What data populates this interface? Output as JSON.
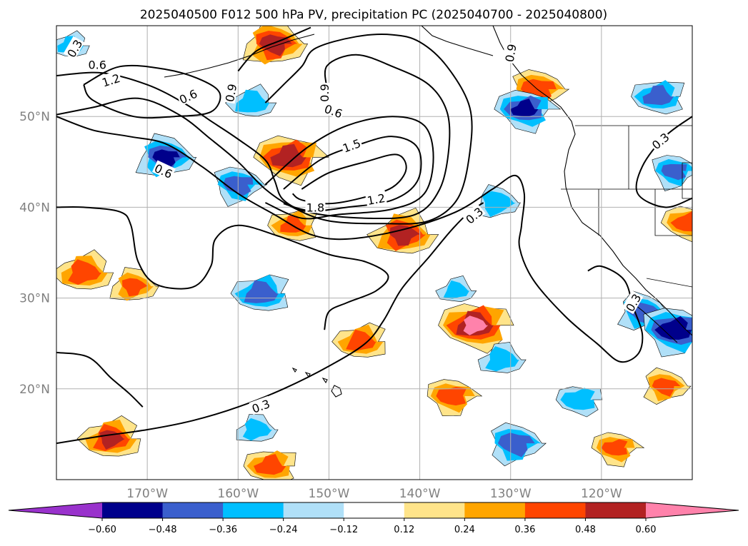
{
  "chart_data": {
    "type": "contour_map",
    "title": "2025040500 F012 500 hPa PV, precipitation PC (2025040700 - 2025040800)",
    "projection": "PlateCarree",
    "lon_range": [
      -180,
      -110
    ],
    "lat_range": [
      10,
      60
    ],
    "lat_ticks": [
      20,
      30,
      40,
      50
    ],
    "lat_labels": [
      "20°N",
      "30°N",
      "40°N",
      "50°N"
    ],
    "lon_ticks": [
      -170,
      -160,
      -150,
      -140,
      -130,
      -120
    ],
    "lon_labels": [
      "170°W",
      "160°W",
      "150°W",
      "140°W",
      "130°W",
      "120°W"
    ],
    "grid": true,
    "colorbar": {
      "orientation": "horizontal",
      "extend": "both",
      "levels": [
        -0.6,
        -0.48,
        -0.36,
        -0.24,
        -0.12,
        0.12,
        0.24,
        0.36,
        0.48,
        0.6
      ],
      "tick_labels": [
        "−0.60",
        "−0.48",
        "−0.36",
        "−0.24",
        "−0.12",
        "0.12",
        "0.24",
        "0.36",
        "0.48",
        "0.60"
      ],
      "colors": [
        "#9932cc",
        "#00008b",
        "#3a5fcd",
        "#00bfff",
        "#b0e0f8",
        "#ffffff",
        "#ffe48a",
        "#ffa500",
        "#ff4500",
        "#b22222",
        "#ff82ab"
      ]
    },
    "pv_contour_labels": [
      "0.3",
      "0.6",
      "0.9",
      "1.2",
      "1.5",
      "1.8"
    ],
    "precip_blobs": [
      {
        "lon": -178.5,
        "lat": 57.8,
        "v": -0.3
      },
      {
        "lon": -156,
        "lat": 58.0,
        "v": 0.5
      },
      {
        "lon": -127,
        "lat": 53.0,
        "v": 0.38
      },
      {
        "lon": -128.5,
        "lat": 50.8,
        "v": -0.5
      },
      {
        "lon": -113.8,
        "lat": 52.2,
        "v": -0.38
      },
      {
        "lon": -158.5,
        "lat": 51.5,
        "v": -0.3
      },
      {
        "lon": -168,
        "lat": 45.5,
        "v": -0.5
      },
      {
        "lon": -160,
        "lat": 42.5,
        "v": -0.38
      },
      {
        "lon": -154.5,
        "lat": 45.5,
        "v": 0.5
      },
      {
        "lon": -154,
        "lat": 38.0,
        "v": 0.38
      },
      {
        "lon": -141.8,
        "lat": 37.0,
        "v": 0.48
      },
      {
        "lon": -131.5,
        "lat": 40.5,
        "v": -0.3
      },
      {
        "lon": -112,
        "lat": 44.0,
        "v": -0.38
      },
      {
        "lon": -110.5,
        "lat": 38.3,
        "v": 0.38
      },
      {
        "lon": -157.5,
        "lat": 30.5,
        "v": -0.38
      },
      {
        "lon": -136,
        "lat": 30.8,
        "v": -0.3
      },
      {
        "lon": -115.5,
        "lat": 28.5,
        "v": -0.38
      },
      {
        "lon": -112,
        "lat": 26.5,
        "v": -0.5
      },
      {
        "lon": -134,
        "lat": 27.0,
        "v": 0.6
      },
      {
        "lon": -146.5,
        "lat": 25.2,
        "v": 0.38
      },
      {
        "lon": -131,
        "lat": 23.2,
        "v": -0.3
      },
      {
        "lon": -113,
        "lat": 20.3,
        "v": 0.38
      },
      {
        "lon": -136.5,
        "lat": 19.2,
        "v": 0.38
      },
      {
        "lon": -122.5,
        "lat": 18.8,
        "v": -0.3
      },
      {
        "lon": -174,
        "lat": 14.5,
        "v": 0.5
      },
      {
        "lon": -158,
        "lat": 15.5,
        "v": -0.3
      },
      {
        "lon": -129.5,
        "lat": 14.0,
        "v": -0.38
      },
      {
        "lon": -118.5,
        "lat": 13.5,
        "v": 0.38
      },
      {
        "lon": -156.5,
        "lat": 11.5,
        "v": 0.38
      },
      {
        "lon": -177,
        "lat": 32.8,
        "v": 0.36
      },
      {
        "lon": -171.5,
        "lat": 31.3,
        "v": 0.36
      }
    ],
    "pv_contours": [
      {
        "level": "1.8",
        "pts": [
          [
            -153,
            42
          ],
          [
            -150,
            43.8
          ],
          [
            -146,
            45
          ],
          [
            -142.5,
            45.8
          ],
          [
            -141.5,
            44.2
          ],
          [
            -143,
            42.2
          ],
          [
            -146.5,
            41
          ],
          [
            -150,
            40.4
          ],
          [
            -153,
            40.8
          ],
          [
            -154,
            41.5
          ]
        ]
      },
      {
        "level": "1.5",
        "pts": [
          [
            -155,
            42
          ],
          [
            -151,
            45.2
          ],
          [
            -147,
            46.8
          ],
          [
            -143,
            47.8
          ],
          [
            -140.2,
            46.5
          ],
          [
            -140.2,
            43
          ],
          [
            -143,
            40.8
          ],
          [
            -148,
            40
          ],
          [
            -152,
            39.6
          ],
          [
            -155,
            40.4
          ]
        ]
      },
      {
        "level": "1.2",
        "pts": [
          [
            -157,
            42.5
          ],
          [
            -152.5,
            46.5
          ],
          [
            -148,
            49
          ],
          [
            -143,
            50
          ],
          [
            -139.5,
            49
          ],
          [
            -138.5,
            45.5
          ],
          [
            -139.5,
            41.5
          ],
          [
            -143,
            39.8
          ],
          [
            -149,
            39.2
          ],
          [
            -153,
            38.8
          ],
          [
            -157,
            40.5
          ]
        ]
      },
      {
        "level": "0.9",
        "pts": [
          [
            -180,
            54.5
          ],
          [
            -175,
            54.8
          ],
          [
            -170,
            53.5
          ],
          [
            -166,
            51.5
          ],
          [
            -163,
            49.5
          ],
          [
            -160,
            47.5
          ],
          [
            -157,
            45.2
          ],
          [
            -156,
            43
          ],
          [
            -155,
            40.8
          ],
          [
            -152,
            39.4
          ],
          [
            -146,
            38.8
          ],
          [
            -140.5,
            39.2
          ],
          [
            -137.8,
            42
          ],
          [
            -136.8,
            46.5
          ],
          [
            -137,
            50.5
          ],
          [
            -139,
            53.5
          ],
          [
            -143,
            55.5
          ],
          [
            -147,
            56.8
          ],
          [
            -150.2,
            55.6
          ],
          [
            -150.2,
            53
          ]
        ]
      },
      {
        "level": "0.6",
        "pts": [
          [
            -180,
            50.2
          ],
          [
            -176,
            51
          ],
          [
            -171,
            52
          ],
          [
            -166.5,
            50.2
          ],
          [
            -163,
            47.5
          ],
          [
            -160,
            45
          ],
          [
            -157,
            42
          ],
          [
            -154,
            40
          ],
          [
            -150,
            38.5
          ],
          [
            -144,
            38.2
          ],
          [
            -139,
            38.5
          ],
          [
            -135.8,
            41
          ],
          [
            -134.5,
            46
          ],
          [
            -134.5,
            51
          ],
          [
            -137,
            55.5
          ],
          [
            -140,
            58.2
          ],
          [
            -143,
            59
          ],
          [
            -147,
            58.8
          ],
          [
            -151.5,
            57.5
          ],
          [
            -153,
            55.5
          ],
          [
            -155,
            53.5
          ],
          [
            -157,
            51.5
          ]
        ]
      },
      {
        "level": "0.6",
        "pts": [
          [
            -177,
            53.5
          ],
          [
            -173,
            55.5
          ],
          [
            -168,
            55.2
          ],
          [
            -164,
            54
          ],
          [
            -162,
            52.5
          ],
          [
            -163,
            50.5
          ],
          [
            -167,
            50
          ],
          [
            -171.5,
            50
          ],
          [
            -176,
            51.8
          ],
          [
            -177,
            53.5
          ]
        ]
      },
      {
        "level": "0.3",
        "pts": [
          [
            -180,
            50
          ],
          [
            -176,
            48.5
          ],
          [
            -172,
            47.8
          ],
          [
            -168,
            47
          ],
          [
            -164,
            44.5
          ],
          [
            -160,
            41.5
          ],
          [
            -156,
            39.2
          ],
          [
            -152,
            37
          ],
          [
            -148,
            36.5
          ],
          [
            -142,
            37.5
          ],
          [
            -136,
            39.5
          ],
          [
            -132,
            42
          ],
          [
            -129.5,
            43.5
          ],
          [
            -128.5,
            41.5
          ],
          [
            -128.8,
            38
          ],
          [
            -129,
            35.5
          ],
          [
            -127.5,
            32
          ],
          [
            -124,
            28
          ],
          [
            -120.5,
            25
          ],
          [
            -118,
            23
          ],
          [
            -116,
            23.8
          ],
          [
            -115.5,
            26
          ],
          [
            -116.5,
            29
          ],
          [
            -117.5,
            32
          ],
          [
            -120,
            33.5
          ],
          [
            -121.5,
            33
          ]
        ]
      },
      {
        "level": "0.3",
        "pts": [
          [
            -180,
            40
          ],
          [
            -177,
            40
          ],
          [
            -173,
            39.5
          ],
          [
            -171.8,
            38
          ],
          [
            -171,
            34
          ],
          [
            -169,
            31.5
          ],
          [
            -165,
            31.2
          ],
          [
            -163,
            33.5
          ],
          [
            -162.5,
            36.5
          ],
          [
            -160,
            38
          ],
          [
            -155.5,
            36.8
          ],
          [
            -150,
            34.8
          ],
          [
            -146,
            34
          ],
          [
            -143.5,
            32.5
          ],
          [
            -144.8,
            30.8
          ],
          [
            -148,
            29.5
          ],
          [
            -150,
            28.5
          ],
          [
            -150.5,
            26.5
          ]
        ]
      },
      {
        "level": "0.3",
        "pts": [
          [
            -180,
            24
          ],
          [
            -176.5,
            23.5
          ],
          [
            -174,
            21.2
          ],
          [
            -172,
            19.5
          ],
          [
            -170.5,
            18
          ]
        ]
      },
      {
        "level": "0.3",
        "pts": [
          [
            -180,
            14
          ],
          [
            -175,
            14.8
          ],
          [
            -170,
            15.5
          ],
          [
            -165,
            16.5
          ],
          [
            -160,
            18
          ],
          [
            -155,
            20
          ],
          [
            -150,
            22.5
          ],
          [
            -146,
            25
          ],
          [
            -144,
            27.5
          ],
          [
            -142,
            31
          ],
          [
            -139,
            34.5
          ],
          [
            -136.5,
            37.5
          ],
          [
            -134.5,
            39.5
          ],
          [
            -133,
            40.5
          ]
        ]
      },
      {
        "level": "0.9",
        "pts": [
          [
            -160,
            55
          ],
          [
            -158,
            57.2
          ],
          [
            -155,
            58.5
          ],
          [
            -152,
            59.8
          ]
        ]
      },
      {
        "level": "0.3",
        "pts": [
          [
            -110,
            50
          ],
          [
            -113,
            47.8
          ],
          [
            -115.5,
            44.5
          ],
          [
            -116,
            41.5
          ],
          [
            -113,
            40
          ],
          [
            -110,
            41
          ]
        ]
      }
    ],
    "contour_label_positions": [
      {
        "text": "0.3",
        "lon": -178,
        "lat": 57.5,
        "rot": -60
      },
      {
        "text": "0.6",
        "lon": -175.5,
        "lat": 55.7,
        "rot": 0
      },
      {
        "text": "1.2",
        "lon": -174,
        "lat": 54.0,
        "rot": -18
      },
      {
        "text": "0.6",
        "lon": -165.5,
        "lat": 52.2,
        "rot": -25
      },
      {
        "text": "0.9",
        "lon": -160.8,
        "lat": 52.6,
        "rot": -80
      },
      {
        "text": "0.6",
        "lon": -168.2,
        "lat": 44.0,
        "rot": 25
      },
      {
        "text": "0.9",
        "lon": -150.5,
        "lat": 52.6,
        "rot": -90
      },
      {
        "text": "0.6",
        "lon": -149.5,
        "lat": 50.6,
        "rot": 20
      },
      {
        "text": "1.5",
        "lon": -147.5,
        "lat": 46.8,
        "rot": -20
      },
      {
        "text": "1.8",
        "lon": -151.5,
        "lat": 40.0,
        "rot": 0
      },
      {
        "text": "1.2",
        "lon": -144.8,
        "lat": 40.9,
        "rot": -10
      },
      {
        "text": "0.3",
        "lon": -134,
        "lat": 39.1,
        "rot": -40
      },
      {
        "text": "0.9",
        "lon": -130,
        "lat": 57.0,
        "rot": -80
      },
      {
        "text": "0.3",
        "lon": -113.5,
        "lat": 47.3,
        "rot": -40
      },
      {
        "text": "0.3",
        "lon": -157.5,
        "lat": 18.1,
        "rot": -20
      },
      {
        "text": "0.3",
        "lon": -116.5,
        "lat": 29.5,
        "rot": -60
      }
    ]
  }
}
